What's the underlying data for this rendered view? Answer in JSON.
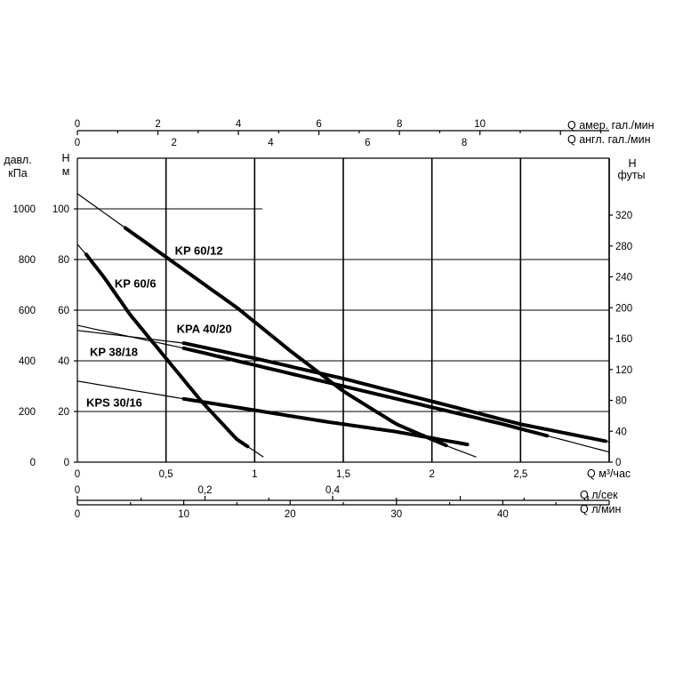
{
  "chart_data": {
    "type": "line",
    "x_primary": {
      "label": "Q  м³/час",
      "ticks": [
        "0",
        "0,5",
        "1",
        "1,5",
        "2",
        "2,5"
      ],
      "range": [
        0,
        3
      ]
    },
    "x_lsec": {
      "label": "Q  л/сек",
      "ticks": [
        "0",
        "0,2",
        "0,4"
      ]
    },
    "x_lmin": {
      "label": "Q  л/мин",
      "ticks": [
        "0",
        "10",
        "20",
        "30",
        "40"
      ]
    },
    "x_us_gpm": {
      "label": "Q  амер. гал./мин",
      "ticks": [
        "0",
        "2",
        "4",
        "6",
        "8",
        "10"
      ]
    },
    "x_uk_gpm": {
      "label": "Q  англ. гал./мин",
      "ticks": [
        "0",
        "2",
        "4",
        "6",
        "8"
      ]
    },
    "y_m": {
      "label_top": "H",
      "label_unit": "м",
      "ticks": [
        "0",
        "20",
        "40",
        "60",
        "80",
        "100"
      ],
      "range": [
        0,
        120
      ]
    },
    "y_kpa": {
      "label_top": "давл.",
      "label_unit": "кПа",
      "ticks": [
        "0",
        "200",
        "400",
        "600",
        "800",
        "1000"
      ]
    },
    "y_ft": {
      "label_top": "H",
      "label_unit": "футы",
      "ticks": [
        "0",
        "40",
        "80",
        "120",
        "160",
        "200",
        "240",
        "280",
        "320"
      ]
    },
    "series": [
      {
        "name": "KP 60/12",
        "label_at": [
          0.55,
          82
        ],
        "points": [
          [
            0,
            106
          ],
          [
            0.3,
            91
          ],
          [
            0.6,
            76
          ],
          [
            0.9,
            61
          ],
          [
            1.2,
            44
          ],
          [
            1.5,
            28
          ],
          [
            1.8,
            15
          ],
          [
            2.1,
            6
          ],
          [
            2.25,
            2
          ]
        ],
        "bold_from": 0.27,
        "bold_to": 2.08
      },
      {
        "name": "KP 60/6",
        "label_at": [
          0.21,
          69
        ],
        "points": [
          [
            0,
            86
          ],
          [
            0.05,
            82
          ],
          [
            0.15,
            73
          ],
          [
            0.3,
            58
          ],
          [
            0.5,
            41
          ],
          [
            0.7,
            24
          ],
          [
            0.9,
            9
          ],
          [
            1.05,
            2
          ]
        ],
        "bold_from": 0.05,
        "bold_to": 0.96
      },
      {
        "name": "KPA 40/20",
        "label_at": [
          0.56,
          51
        ],
        "points": [
          [
            0,
            52
          ],
          [
            0.6,
            47
          ],
          [
            1.0,
            41
          ],
          [
            1.5,
            33
          ],
          [
            2.0,
            24
          ],
          [
            2.5,
            15
          ],
          [
            3.0,
            8
          ]
        ],
        "bold_from": 0.6,
        "bold_to": 2.98
      },
      {
        "name": "KP 38/18",
        "label_at": [
          0.07,
          42
        ],
        "points": [
          [
            0,
            54
          ],
          [
            0.6,
            45
          ],
          [
            1.2,
            35
          ],
          [
            1.8,
            25
          ],
          [
            2.4,
            15
          ],
          [
            3.0,
            4
          ]
        ],
        "bold_from": 0.6,
        "bold_to": 2.65
      },
      {
        "name": "KPS 30/16",
        "label_at": [
          0.05,
          22
        ],
        "points": [
          [
            0,
            32
          ],
          [
            0.6,
            25
          ],
          [
            1.0,
            20.5
          ],
          [
            1.4,
            16
          ],
          [
            1.8,
            12
          ],
          [
            2.2,
            7
          ]
        ],
        "bold_from": 0.6,
        "bold_to": 2.2
      }
    ]
  }
}
